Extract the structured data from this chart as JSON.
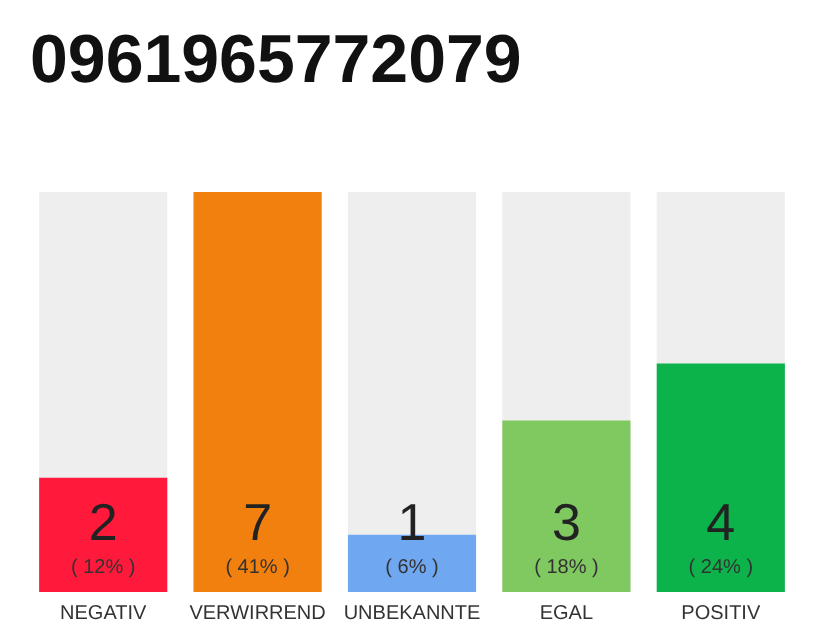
{
  "chart_data": {
    "type": "bar",
    "title": "0961965772079",
    "categories": [
      "NEGATIV",
      "VERWIRREND",
      "UNBEKANNTE",
      "EGAL",
      "POSITIV"
    ],
    "values": [
      2,
      7,
      1,
      3,
      4
    ],
    "colors": [
      "#ff1a3c",
      "#f2800f",
      "#6fa8f0",
      "#80c860",
      "#0bb34a"
    ],
    "value_labels": [
      "2\n( 12% )",
      "7\n( 41% )",
      "1\n( 6% )",
      "3\n( 18% )",
      "4\n( 24% )"
    ]
  }
}
